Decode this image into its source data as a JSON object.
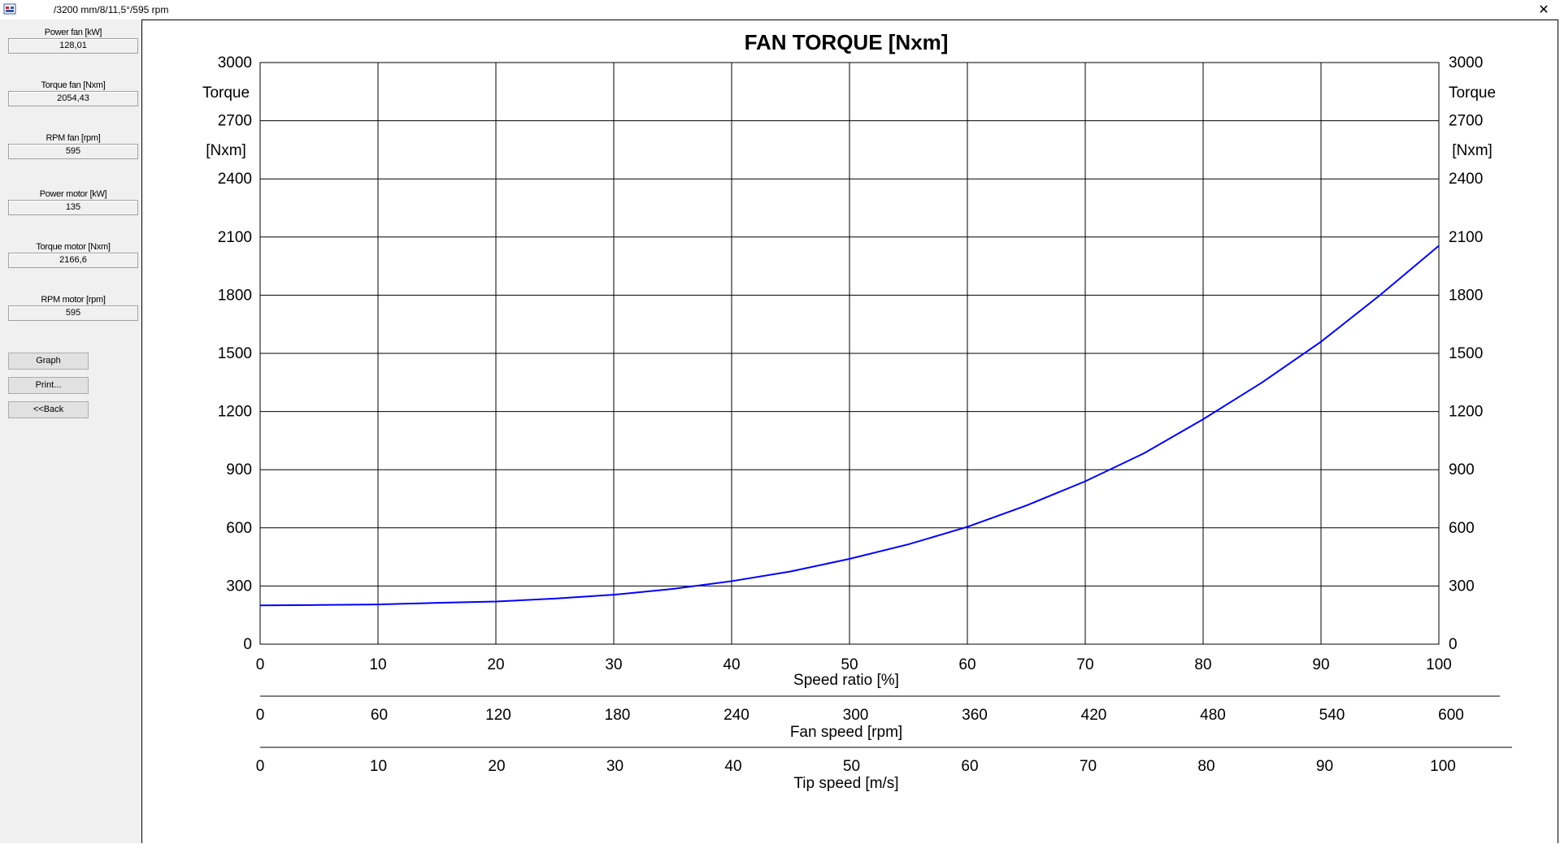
{
  "window": {
    "title": "/3200 mm/8/11,5°/595 rpm",
    "close_symbol": "✕"
  },
  "sidebar": {
    "fields": [
      {
        "label": "Power fan [kW]",
        "value": "128,01"
      },
      {
        "label": "Torque fan [Nxm]",
        "value": "2054,43"
      },
      {
        "label": "RPM fan [rpm]",
        "value": "595"
      },
      {
        "label": "Power motor [kW]",
        "value": "135"
      },
      {
        "label": "Torque motor [Nxm]",
        "value": "2166,6"
      },
      {
        "label": "RPM motor [rpm]",
        "value": "595"
      }
    ],
    "buttons": {
      "graph": "Graph",
      "print": "Print...",
      "back": "<<Back"
    }
  },
  "chart_data": {
    "type": "line",
    "title": "FAN TORQUE [Nxm]",
    "ylabel_line1": "Torque",
    "ylabel_line2": "[Nxm]",
    "ylim": [
      0,
      3000
    ],
    "yticks": [
      0,
      300,
      600,
      900,
      1200,
      1500,
      1800,
      2100,
      2400,
      2700,
      3000
    ],
    "xlim": [
      0,
      100
    ],
    "xticks": [
      0,
      10,
      20,
      30,
      40,
      50,
      60,
      70,
      80,
      90,
      100
    ],
    "xlabel": "Speed ratio [%]",
    "fan_speed_axis": {
      "label": "Fan speed [rpm]",
      "ticks": [
        0,
        60,
        120,
        180,
        240,
        300,
        360,
        420,
        480,
        540,
        600
      ]
    },
    "tip_speed_axis": {
      "label": "Tip speed [m/s]",
      "ticks": [
        0,
        10,
        20,
        30,
        40,
        50,
        60,
        70,
        80,
        90,
        100
      ]
    },
    "grid": true,
    "line_color": "#0000ff",
    "series": [
      {
        "x": [
          0,
          5,
          10,
          15,
          20,
          25,
          30,
          35,
          40,
          45,
          50,
          55,
          60,
          65,
          70,
          75,
          80,
          85,
          90,
          95,
          100
        ],
        "values": [
          200,
          202,
          205,
          213,
          220,
          235,
          255,
          285,
          325,
          375,
          440,
          515,
          605,
          715,
          840,
          985,
          1160,
          1350,
          1560,
          1800,
          2055
        ]
      }
    ]
  }
}
